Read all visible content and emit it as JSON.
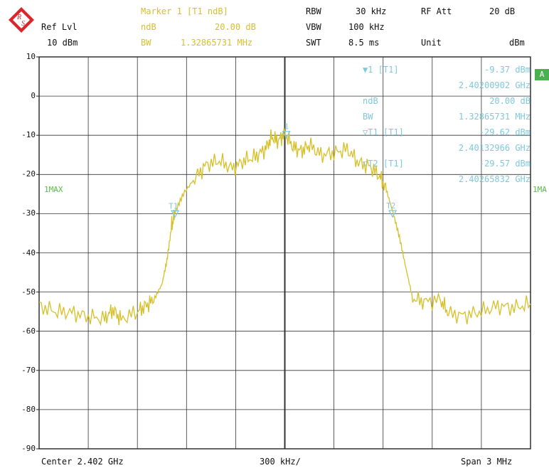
{
  "header": {
    "ref_lvl_label": "Ref Lvl",
    "ref_lvl_value": "10 dBm",
    "marker_title": "Marker 1 [T1 ndB]",
    "ndb_label": "ndB",
    "ndb_value": "20.00 dB",
    "bw_label": "BW",
    "bw_value": "1.32865731 MHz",
    "rbw_label": "RBW",
    "rbw_value": "30 kHz",
    "vbw_label": "VBW",
    "vbw_value": "100 kHz",
    "swt_label": "SWT",
    "swt_value": "8.5 ms",
    "rf_att_label": "RF Att",
    "rf_att_value": "20 dB",
    "unit_label": "Unit",
    "unit_value": "dBm"
  },
  "marker_table": [
    {
      "label": "▼1 [T1]",
      "value": "-9.37 dBm"
    },
    {
      "label": "",
      "value": "2.40200902 GHz"
    },
    {
      "label": "ndB",
      "value": "20.00 dB"
    },
    {
      "label": "BW",
      "value": "1.32865731 MHz"
    },
    {
      "label": "▽T1 [T1]",
      "value": "-29.62 dBm"
    },
    {
      "label": "",
      "value": "2.40132966 GHz"
    },
    {
      "label": "▽T2 [T1]",
      "value": "-29.57 dBm"
    },
    {
      "label": "",
      "value": "2.40265832 GHz"
    }
  ],
  "trace_label_left": "1MAX",
  "trace_label_right": "1MA",
  "side_tab": "A",
  "marker_labels": {
    "m1": "1",
    "t1": "T1",
    "t2": "T2"
  },
  "footer": {
    "center": "Center 2.402 GHz",
    "per_div": "300 kHz/",
    "span": "Span 3 MHz"
  },
  "colors": {
    "trace": "#d6c02a",
    "marker": "#7fc8dc",
    "trace_label": "#5bbf3a"
  },
  "chart_data": {
    "type": "line",
    "ylim": [
      -90,
      10
    ],
    "xlim": [
      2.4005,
      2.4035
    ],
    "x_unit": "GHz",
    "y_unit": "dBm",
    "grid": true,
    "y_ticks": [
      "10",
      "0",
      "-10",
      "-20",
      "-30",
      "-40",
      "-50",
      "-60",
      "-70",
      "-80",
      "-90"
    ],
    "series": [
      {
        "values": [
          [
            2.4005,
            -53.5
          ],
          [
            2.4006,
            -55.0
          ],
          [
            2.4007,
            -55.2
          ],
          [
            2.4008,
            -56.3
          ],
          [
            2.4009,
            -56.8
          ],
          [
            2.40095,
            -54.5
          ],
          [
            2.401,
            -57.0
          ],
          [
            2.4011,
            -55.0
          ],
          [
            2.40115,
            -53.5
          ],
          [
            2.4012,
            -52.0
          ],
          [
            2.40125,
            -48.0
          ],
          [
            2.40128,
            -42.0
          ],
          [
            2.40131,
            -33.0
          ],
          [
            2.40133,
            -29.6
          ],
          [
            2.40138,
            -25.0
          ],
          [
            2.40145,
            -21.0
          ],
          [
            2.40152,
            -17.5
          ],
          [
            2.4016,
            -16.5
          ],
          [
            2.40168,
            -18.5
          ],
          [
            2.40175,
            -16.5
          ],
          [
            2.40182,
            -15.5
          ],
          [
            2.40188,
            -13.5
          ],
          [
            2.40192,
            -10.5
          ],
          [
            2.40196,
            -11.5
          ],
          [
            2.402,
            -9.37
          ],
          [
            2.40205,
            -13.0
          ],
          [
            2.4021,
            -14.0
          ],
          [
            2.40215,
            -12.5
          ],
          [
            2.40222,
            -15.0
          ],
          [
            2.4023,
            -14.5
          ],
          [
            2.40238,
            -13.5
          ],
          [
            2.40245,
            -17.0
          ],
          [
            2.40252,
            -18.0
          ],
          [
            2.40258,
            -20.5
          ],
          [
            2.40262,
            -24.0
          ],
          [
            2.40266,
            -29.6
          ],
          [
            2.4027,
            -36.0
          ],
          [
            2.40274,
            -44.0
          ],
          [
            2.40278,
            -51.5
          ],
          [
            2.40285,
            -52.5
          ],
          [
            2.40295,
            -52.0
          ],
          [
            2.403,
            -55.5
          ],
          [
            2.4031,
            -56.0
          ],
          [
            2.4032,
            -55.0
          ],
          [
            2.4033,
            -53.5
          ],
          [
            2.4034,
            -54.0
          ],
          [
            2.4035,
            -53.0
          ]
        ]
      }
    ],
    "markers": [
      {
        "name": "1",
        "x": 2.40200902,
        "y": -9.37
      },
      {
        "name": "T1",
        "x": 2.40132966,
        "y": -29.62
      },
      {
        "name": "T2",
        "x": 2.40265832,
        "y": -29.57
      }
    ]
  }
}
